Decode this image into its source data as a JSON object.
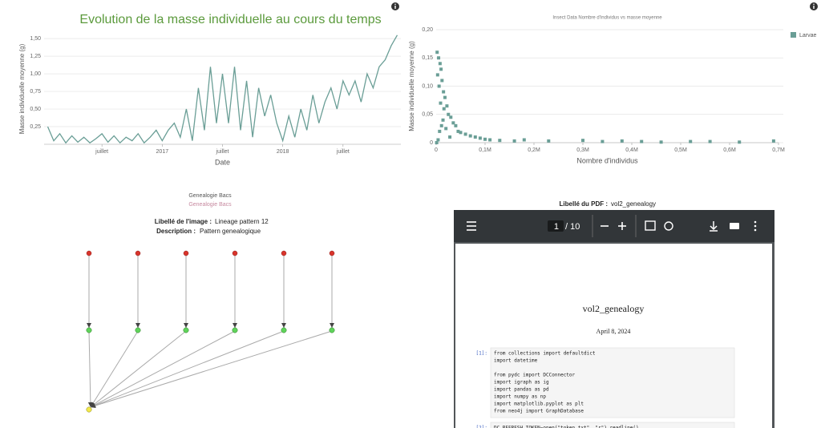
{
  "chart_data": [
    {
      "type": "line",
      "title": "Evolution de la masse individuelle au cours du temps",
      "x_label": "Date",
      "y_label": "Masse individuelle moyenne (g)",
      "color": "#6a9e96",
      "grid": true,
      "x": [
        2016.05,
        2016.1,
        2016.15,
        2016.2,
        2016.25,
        2016.3,
        2016.35,
        2016.4,
        2016.45,
        2016.5,
        2016.55,
        2016.6,
        2016.65,
        2016.7,
        2016.75,
        2016.8,
        2016.85,
        2016.9,
        2016.95,
        2017.0,
        2017.05,
        2017.1,
        2017.15,
        2017.2,
        2017.25,
        2017.3,
        2017.35,
        2017.4,
        2017.45,
        2017.5,
        2017.55,
        2017.6,
        2017.65,
        2017.7,
        2017.75,
        2017.8,
        2017.85,
        2017.9,
        2017.95,
        2018.0,
        2018.05,
        2018.1,
        2018.15,
        2018.2,
        2018.25,
        2018.3,
        2018.35,
        2018.4,
        2018.45,
        2018.5,
        2018.55,
        2018.6,
        2018.65,
        2018.7,
        2018.75,
        2018.8,
        2018.85,
        2018.9,
        2018.95
      ],
      "values": [
        0.25,
        0.05,
        0.15,
        0.02,
        0.12,
        0.03,
        0.1,
        0.02,
        0.08,
        0.15,
        0.03,
        0.12,
        0.02,
        0.1,
        0.05,
        0.15,
        0.02,
        0.1,
        0.2,
        0.05,
        0.2,
        0.3,
        0.1,
        0.5,
        0.05,
        0.8,
        0.2,
        1.1,
        0.3,
        1.0,
        0.3,
        1.1,
        0.2,
        0.9,
        0.1,
        0.8,
        0.4,
        0.7,
        0.3,
        0.05,
        0.4,
        0.1,
        0.5,
        0.2,
        0.7,
        0.3,
        0.6,
        0.8,
        0.5,
        0.9,
        0.7,
        0.9,
        0.6,
        1.0,
        0.8,
        1.1,
        1.2,
        1.4,
        1.55
      ],
      "xlim": [
        2016.02,
        2018.98
      ],
      "xticks": [
        {
          "value": 2016.5,
          "label": "juillet"
        },
        2017,
        {
          "value": 2017.5,
          "label": "juillet"
        },
        2018,
        {
          "value": 2018.5,
          "label": "juillet"
        }
      ],
      "ylim": [
        0,
        1.57
      ],
      "yticks": [
        {
          "value": 0.25,
          "label": "0,25"
        },
        {
          "value": 0.5,
          "label": "0,50"
        },
        {
          "value": 0.75,
          "label": "0,75"
        },
        {
          "value": 1.0,
          "label": "1,00"
        },
        {
          "value": 1.25,
          "label": "1,25"
        },
        {
          "value": 1.5,
          "label": "1,50"
        }
      ]
    },
    {
      "type": "scatter",
      "title": "Insect Data Nombre d'individus vs masse moyenne",
      "x_label": "Nombre d'individus",
      "y_label": "Masse individuelle moyenne (g)",
      "grid": true,
      "legend": "top-right",
      "series": [
        {
          "name": "Larvae",
          "color": "#6a9e96",
          "x": [
            2000,
            5000,
            8000,
            3000,
            10000,
            12000,
            6000,
            15000,
            18000,
            9000,
            22000,
            25000,
            30000,
            14000,
            35000,
            40000,
            20000,
            45000,
            50000,
            60000,
            70000,
            28000,
            80000,
            90000,
            100000,
            110000,
            130000,
            160000,
            180000,
            230000,
            300000,
            340000,
            380000,
            420000,
            460000,
            520000,
            560000,
            620000,
            690000,
            4000,
            7000,
            11000,
            16000,
            1000
          ],
          "values": [
            0.16,
            0.15,
            0.14,
            0.12,
            0.13,
            0.11,
            0.1,
            0.09,
            0.08,
            0.07,
            0.065,
            0.05,
            0.045,
            0.04,
            0.035,
            0.03,
            0.025,
            0.02,
            0.018,
            0.015,
            0.012,
            0.01,
            0.01,
            0.008,
            0.006,
            0.005,
            0.004,
            0.003,
            0.005,
            0.003,
            0.004,
            0.002,
            0.003,
            0.002,
            0.001,
            0.002,
            0.002,
            0.001,
            0.003,
            0.005,
            0.02,
            0.03,
            0.06,
            0
          ]
        }
      ],
      "xlim": [
        0,
        700000
      ],
      "xticks": [
        0,
        {
          "value": 100000,
          "label": "0,1M"
        },
        {
          "value": 200000,
          "label": "0,2M"
        },
        {
          "value": 300000,
          "label": "0,3M"
        },
        {
          "value": 400000,
          "label": "0,4M"
        },
        {
          "value": 500000,
          "label": "0,5M"
        },
        {
          "value": 600000,
          "label": "0,6M"
        },
        {
          "value": 700000,
          "label": "0,7M"
        }
      ],
      "ylim": [
        0,
        0.2
      ],
      "yticks": [
        0,
        {
          "value": 0.05,
          "label": "0,05"
        },
        {
          "value": 0.1,
          "label": "0,10"
        },
        {
          "value": 0.15,
          "label": "0,15"
        },
        {
          "value": 0.2,
          "label": "0,20"
        }
      ]
    }
  ],
  "genealogy": {
    "title": "Genealogie Bacs",
    "subtitle": "Genealogie Bacs",
    "image_label": {
      "key": "Libellé de l'image :",
      "value": "Lineage pattern 12"
    },
    "description": {
      "key": "Description :",
      "value": "Pattern genealogique"
    }
  },
  "pdf_viewer": {
    "label": {
      "key": "Libellé du PDF :",
      "value": "vol2_genealogy"
    },
    "page": "1",
    "page_count": "/ 10",
    "document": {
      "title": "vol2_genealogy",
      "date": "April 8, 2024",
      "cells": [
        {
          "prompt": "[1]:",
          "blocks": [
            [
              "from collections import defaultdict",
              "import datetime"
            ],
            [
              "from pydc import DCConnector",
              "import igraph as ig",
              "import pandas as pd",
              "import numpy as np",
              "import matplotlib.pyplot as plt",
              "from neo4j import GraphDatabase"
            ]
          ]
        },
        {
          "prompt": "[2]:",
          "blocks": [
            [
              "DC_REFRESH_TOKEN=open(\"token.txt\", \"r\").readline()"
            ]
          ]
        }
      ]
    }
  }
}
